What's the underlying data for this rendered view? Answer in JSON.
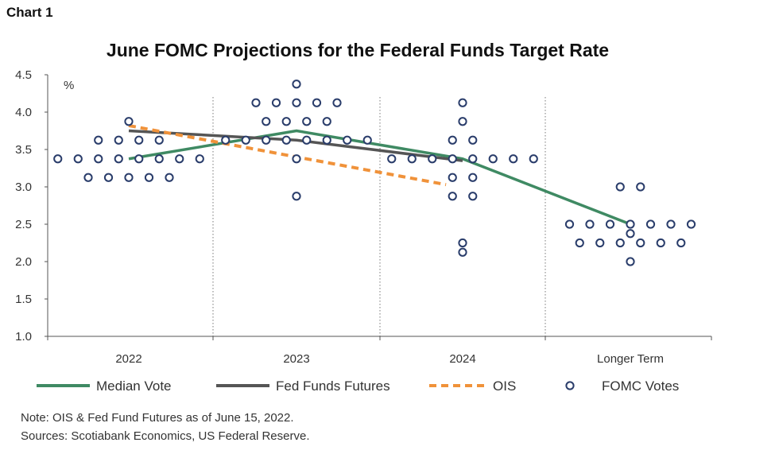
{
  "header": {
    "chart_label": "Chart 1"
  },
  "chart_data": {
    "type": "scatter",
    "title": "June FOMC Projections for the Federal Funds Target Rate",
    "ylabel": "%",
    "xlabel": "",
    "ylim": [
      1.0,
      4.5
    ],
    "yticks": [
      "1.0",
      "1.5",
      "2.0",
      "2.5",
      "3.0",
      "3.5",
      "4.0",
      "4.5"
    ],
    "categories": [
      "2022",
      "2023",
      "2024",
      "Longer Term"
    ],
    "grid": "vertical dotted separators between categories",
    "legend_position": "bottom",
    "colors": {
      "median": "#3f8a63",
      "futures": "#555555",
      "ois": "#f0923a",
      "votes": "#2a3d6b"
    },
    "series": [
      {
        "name": "Median Vote",
        "style": "line",
        "points": [
          [
            0,
            3.375
          ],
          [
            1,
            3.75
          ],
          [
            2,
            3.375
          ],
          [
            3,
            2.5
          ]
        ]
      },
      {
        "name": "Fed Funds Futures",
        "style": "line",
        "points": [
          [
            0,
            3.75
          ],
          [
            1,
            3.625
          ],
          [
            2,
            3.35
          ]
        ]
      },
      {
        "name": "OIS",
        "style": "dashed",
        "points": [
          [
            0,
            3.82
          ],
          [
            1,
            3.4
          ],
          [
            1.9,
            3.03
          ]
        ]
      },
      {
        "name": "FOMC Votes",
        "style": "dots",
        "votes": [
          {
            "category": 0,
            "value": 3.875,
            "count": 1
          },
          {
            "category": 0,
            "value": 3.625,
            "count": 4
          },
          {
            "category": 0,
            "value": 3.375,
            "count": 8
          },
          {
            "category": 0,
            "value": 3.125,
            "count": 5
          },
          {
            "category": 1,
            "value": 4.375,
            "count": 1
          },
          {
            "category": 1,
            "value": 4.125,
            "count": 5
          },
          {
            "category": 1,
            "value": 3.875,
            "count": 4
          },
          {
            "category": 1,
            "value": 3.625,
            "count": 8
          },
          {
            "category": 1,
            "value": 3.375,
            "count": 1
          },
          {
            "category": 1,
            "value": 2.875,
            "count": 1
          },
          {
            "category": 2,
            "value": 4.125,
            "count": 1
          },
          {
            "category": 2,
            "value": 3.875,
            "count": 1
          },
          {
            "category": 2,
            "value": 3.625,
            "count": 2
          },
          {
            "category": 2,
            "value": 3.375,
            "count": 8
          },
          {
            "category": 2,
            "value": 3.125,
            "count": 2
          },
          {
            "category": 2,
            "value": 2.875,
            "count": 2
          },
          {
            "category": 2,
            "value": 2.25,
            "count": 1
          },
          {
            "category": 2,
            "value": 2.125,
            "count": 1
          },
          {
            "category": 3,
            "value": 3.0,
            "count": 2
          },
          {
            "category": 3,
            "value": 2.5,
            "count": 7
          },
          {
            "category": 3,
            "value": 2.375,
            "count": 1
          },
          {
            "category": 3,
            "value": 2.25,
            "count": 6
          },
          {
            "category": 3,
            "value": 2.0,
            "count": 1
          }
        ]
      }
    ]
  },
  "notes": {
    "note": "Note: OIS & Fed Fund Futures as of June 15, 2022.",
    "sources": "Sources: Scotiabank Economics, US Federal Reserve."
  }
}
